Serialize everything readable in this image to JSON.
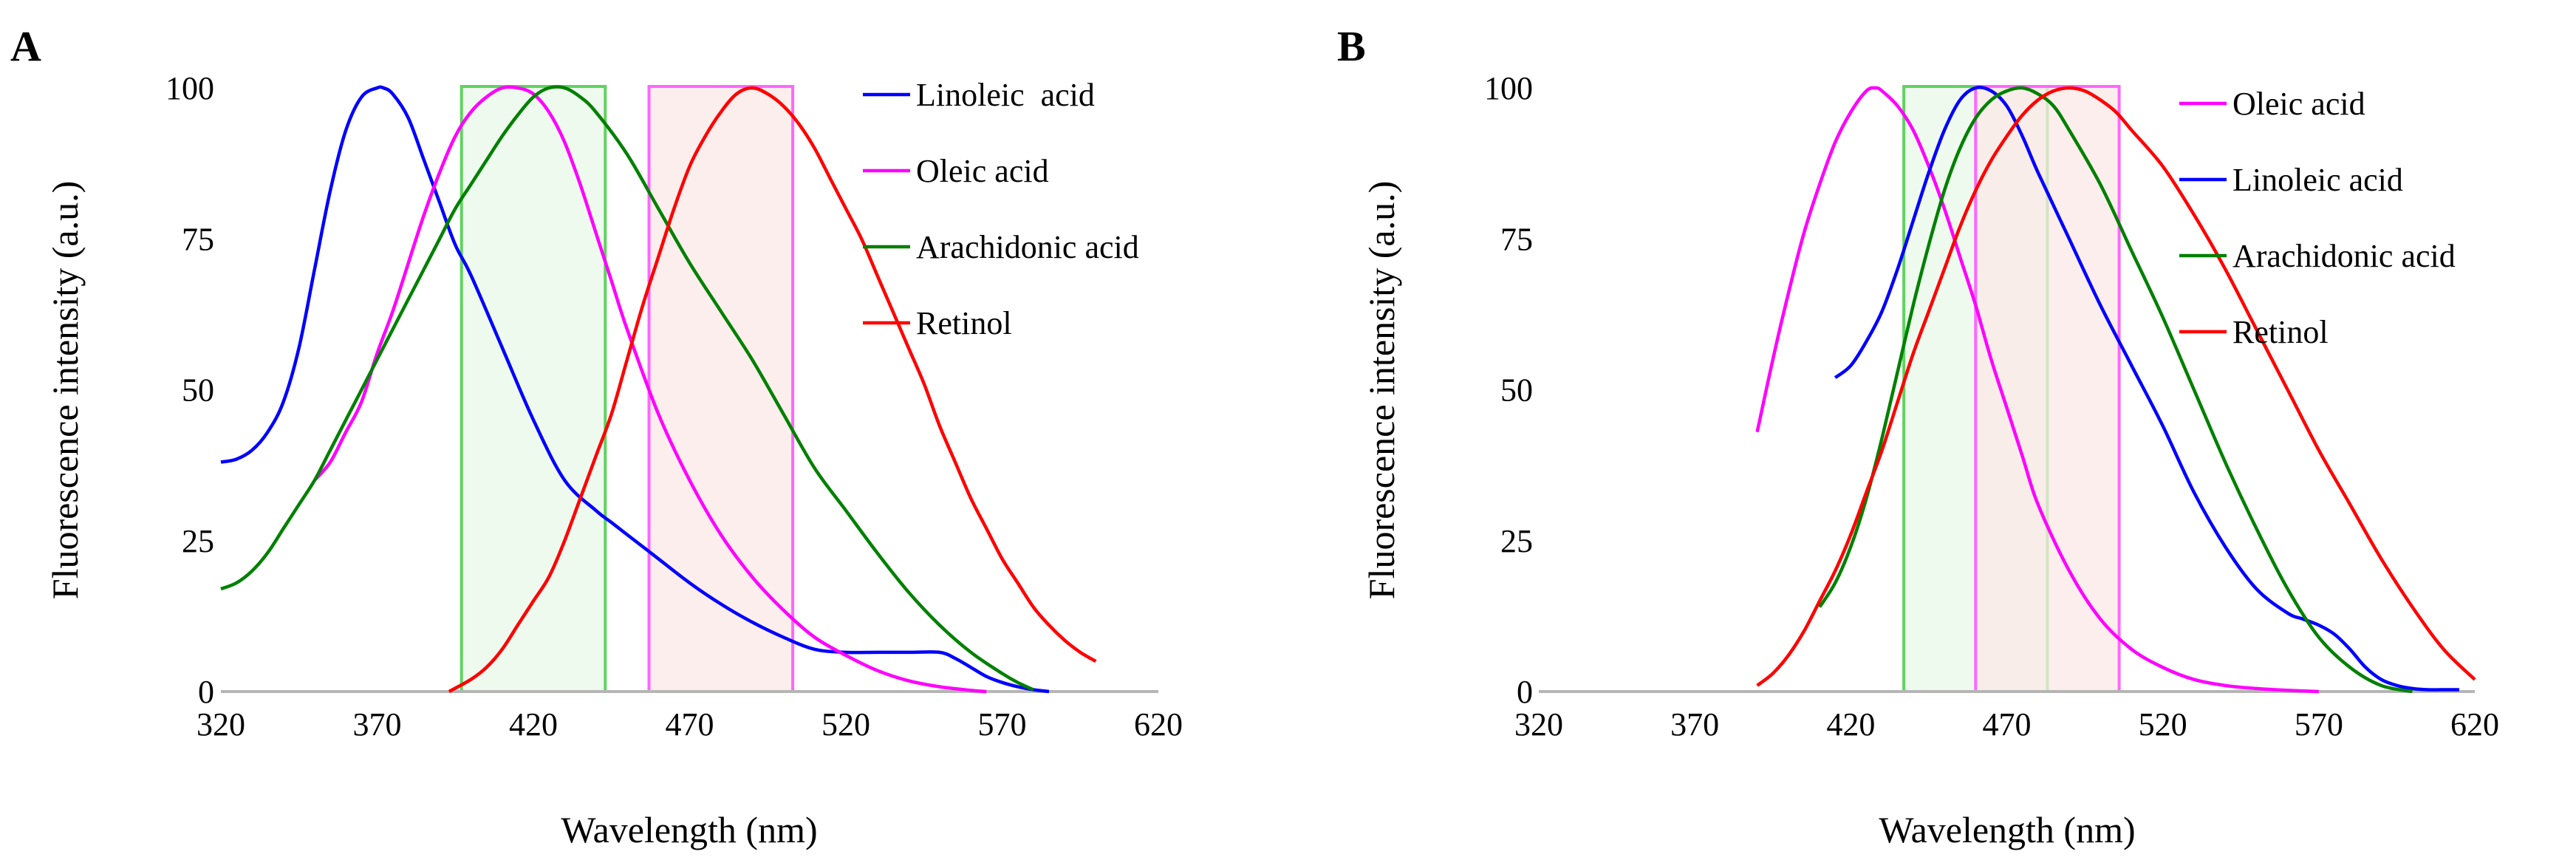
{
  "chart_data": [
    {
      "panel": "A",
      "type": "line",
      "xlabel": "Wavelength (nm)",
      "ylabel": "Fluorescence intensity (a.u.)",
      "xlim": [
        320,
        620
      ],
      "ylim": [
        0,
        100
      ],
      "xticks": [
        320,
        370,
        420,
        470,
        520,
        570,
        620
      ],
      "yticks": [
        0,
        25,
        50,
        75,
        100
      ],
      "bands": [
        {
          "x0": 397,
          "x1": 443,
          "color": "#5fd35f",
          "fill": "#e9f8e9"
        },
        {
          "x0": 457,
          "x1": 503,
          "color": "#ff66ff",
          "fill": "#fbe8e6"
        }
      ],
      "series": [
        {
          "name": "Linoleic  acid",
          "color": "#0000ff",
          "x": [
            320,
            325,
            330,
            335,
            340,
            345,
            350,
            355,
            360,
            365,
            370,
            372,
            375,
            380,
            385,
            390,
            395,
            400,
            410,
            420,
            430,
            440,
            445,
            450,
            460,
            470,
            480,
            490,
            500,
            510,
            520,
            530,
            540,
            550,
            555,
            560,
            565,
            570,
            575,
            580,
            585
          ],
          "y": [
            38,
            38.5,
            40,
            43,
            48,
            57,
            70,
            83,
            93,
            98.5,
            100,
            100,
            99,
            95,
            88,
            81,
            74,
            69,
            57,
            45,
            35,
            30,
            28,
            26,
            22,
            18,
            14.5,
            11.5,
            9,
            7,
            6.5,
            6.5,
            6.5,
            6.5,
            5.5,
            4,
            2.5,
            1.5,
            0.8,
            0.3,
            0
          ]
        },
        {
          "name": "Oleic acid",
          "color": "#ff00ff",
          "x": [
            350,
            355,
            360,
            365,
            370,
            375,
            380,
            385,
            390,
            395,
            400,
            405,
            410,
            415,
            420,
            425,
            430,
            435,
            440,
            445,
            450,
            460,
            470,
            480,
            490,
            500,
            510,
            520,
            530,
            540,
            550,
            560,
            565
          ],
          "y": [
            35,
            38,
            43,
            48,
            56,
            63,
            71,
            79,
            86,
            92,
            96,
            98.5,
            100,
            100,
            99,
            96,
            91,
            84,
            76,
            68,
            60,
            46,
            35,
            26,
            19,
            13.5,
            9,
            6,
            3.5,
            1.8,
            0.8,
            0.2,
            0
          ]
        },
        {
          "name": "Arachidonic acid",
          "color": "#008000",
          "x": [
            320,
            325,
            330,
            335,
            340,
            345,
            350,
            355,
            360,
            365,
            370,
            375,
            380,
            385,
            390,
            395,
            400,
            405,
            410,
            415,
            420,
            425,
            430,
            435,
            440,
            450,
            460,
            470,
            480,
            490,
            500,
            510,
            520,
            530,
            540,
            550,
            560,
            570,
            575,
            580
          ],
          "y": [
            17,
            18,
            20,
            23,
            27,
            31,
            35,
            40,
            45,
            50,
            55,
            60,
            65,
            70,
            75,
            80,
            84,
            88,
            92,
            95.5,
            98.5,
            100,
            100,
            98.5,
            96,
            89,
            80,
            71,
            63,
            55,
            46,
            37,
            30,
            23,
            16.5,
            11,
            6.5,
            3,
            1.5,
            0.3
          ]
        },
        {
          "name": "Retinol",
          "color": "#ff0000",
          "x": [
            393,
            400,
            405,
            410,
            415,
            420,
            425,
            430,
            435,
            440,
            445,
            450,
            455,
            460,
            465,
            470,
            475,
            480,
            485,
            490,
            495,
            500,
            505,
            510,
            515,
            520,
            525,
            530,
            535,
            540,
            545,
            550,
            555,
            560,
            565,
            570,
            575,
            580,
            585,
            590,
            595,
            600
          ],
          "y": [
            0,
            2,
            4,
            7,
            11,
            15,
            19,
            25,
            32,
            39,
            46,
            55,
            64,
            72,
            80,
            87,
            92,
            96,
            99,
            100,
            99,
            97,
            94,
            90,
            85,
            80,
            75,
            69,
            63,
            57,
            51,
            44,
            38,
            32,
            27,
            22,
            18,
            14,
            11,
            8.5,
            6.5,
            5
          ]
        }
      ],
      "legend": [
        "Linoleic  acid",
        "Oleic acid",
        "Arachidonic acid",
        "Retinol"
      ]
    },
    {
      "panel": "B",
      "type": "line",
      "xlabel": "Wavelength (nm)",
      "ylabel": "Fluorescence intensity (a.u.)",
      "xlim": [
        320,
        620
      ],
      "ylim": [
        0,
        100
      ],
      "xticks": [
        320,
        370,
        420,
        470,
        520,
        570,
        620
      ],
      "yticks": [
        0,
        25,
        50,
        75,
        100
      ],
      "bands": [
        {
          "x0": 437,
          "x1": 483,
          "color": "#5fd35f",
          "fill": "#e9f8e9"
        },
        {
          "x0": 460,
          "x1": 506,
          "color": "#ff66ff",
          "fill": "#fbe8e6"
        }
      ],
      "series": [
        {
          "name": "Oleic acid",
          "color": "#ff00ff",
          "x": [
            390,
            395,
            400,
            405,
            410,
            415,
            420,
            425,
            428,
            430,
            435,
            440,
            445,
            450,
            455,
            460,
            465,
            470,
            475,
            480,
            490,
            500,
            510,
            520,
            530,
            540,
            550,
            560,
            570
          ],
          "y": [
            43,
            55,
            66,
            76,
            84,
            91,
            96,
            99.5,
            100,
            99.5,
            97,
            93,
            87,
            80,
            72,
            64,
            55,
            47,
            39,
            31,
            20,
            12,
            7,
            4,
            2,
            1,
            0.5,
            0.2,
            0
          ]
        },
        {
          "name": "Linoleic acid",
          "color": "#0000ff",
          "x": [
            415,
            420,
            425,
            430,
            435,
            440,
            445,
            450,
            455,
            460,
            465,
            470,
            475,
            480,
            490,
            500,
            510,
            520,
            530,
            540,
            550,
            560,
            565,
            570,
            575,
            580,
            585,
            590,
            595,
            600,
            605,
            610,
            615
          ],
          "y": [
            52,
            54,
            58,
            63,
            70,
            78,
            86,
            93,
            98,
            100,
            99.5,
            97,
            92,
            86,
            75,
            64,
            54,
            44,
            33,
            24,
            17,
            13,
            12,
            11,
            9.5,
            7,
            4,
            2,
            1,
            0.5,
            0.3,
            0.3,
            0.3
          ]
        },
        {
          "name": "Arachidonic acid",
          "color": "#008000",
          "x": [
            410,
            415,
            420,
            425,
            430,
            435,
            440,
            445,
            450,
            455,
            460,
            465,
            470,
            475,
            480,
            485,
            490,
            500,
            510,
            520,
            530,
            540,
            550,
            560,
            570,
            580,
            590,
            600
          ],
          "y": [
            14,
            18,
            24,
            32,
            42,
            53,
            64,
            74,
            83,
            90,
            95,
            98,
            99.5,
            100,
            99,
            97,
            93,
            84,
            73,
            62,
            50,
            38,
            27,
            17,
            9,
            4,
            1,
            0
          ]
        },
        {
          "name": "Retinol",
          "color": "#ff0000",
          "x": [
            390,
            395,
            400,
            405,
            410,
            415,
            420,
            425,
            430,
            435,
            440,
            445,
            450,
            455,
            460,
            465,
            470,
            475,
            480,
            485,
            490,
            495,
            500,
            505,
            510,
            520,
            530,
            540,
            550,
            560,
            570,
            580,
            590,
            600,
            610,
            620
          ],
          "y": [
            1,
            3,
            6,
            10,
            15,
            20,
            26,
            33,
            40,
            48,
            56,
            63,
            70,
            77,
            83,
            88,
            92,
            95.5,
            98,
            99.5,
            100,
            99.5,
            98,
            96,
            93,
            87,
            79,
            70,
            60,
            50,
            40,
            31,
            22,
            14,
            7,
            2
          ]
        }
      ],
      "legend": [
        "Oleic acid",
        "Linoleic acid",
        "Arachidonic acid",
        "Retinol"
      ]
    }
  ]
}
